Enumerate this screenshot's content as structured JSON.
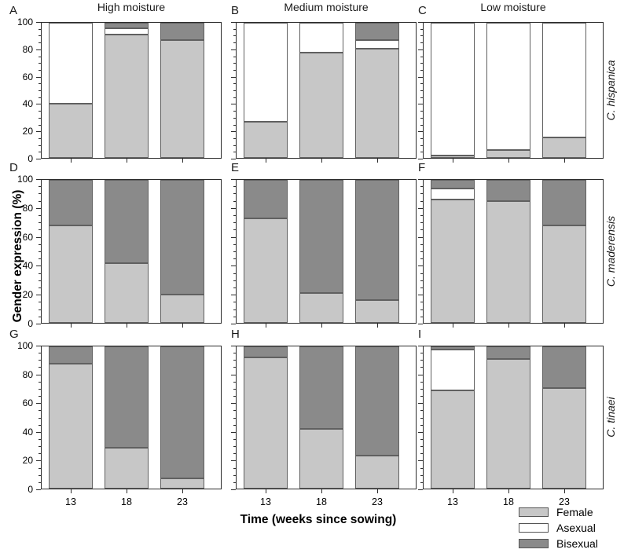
{
  "figure": {
    "y_axis_title": "Gender expression (%)",
    "x_axis_title": "Time (weeks since sowing)"
  },
  "columns": [
    {
      "title": "High moisture"
    },
    {
      "title": "Medium moisture"
    },
    {
      "title": "Low moisture"
    }
  ],
  "rows": [
    {
      "species": "C. hispanica"
    },
    {
      "species": "C. maderensis"
    },
    {
      "species": "C. tinaei"
    }
  ],
  "legend": [
    {
      "label": "Female",
      "color": "#c7c7c7"
    },
    {
      "label": "Asexual",
      "color": "#ffffff"
    },
    {
      "label": "Bisexual",
      "color": "#8a8a8a"
    }
  ],
  "chart_data": {
    "type": "bar",
    "stacked": true,
    "x": [
      "13",
      "18",
      "23"
    ],
    "xlabel": "Time (weeks since sowing)",
    "ylabel": "Gender expression (%)",
    "ylim": [
      0,
      100
    ],
    "y_ticks": [
      0,
      20,
      40,
      60,
      80,
      100
    ],
    "y_minor_tick_step": 5,
    "grid": false,
    "legend_position": "bottom-right",
    "stack_order_bottom_to_top": [
      "Female",
      "Asexual",
      "Bisexual"
    ],
    "colors": {
      "Female": "#c7c7c7",
      "Asexual": "#ffffff",
      "Bisexual": "#8a8a8a"
    },
    "panels": [
      {
        "letter": "A",
        "moisture": "High moisture",
        "species": "C. hispanica",
        "series": {
          "Female": [
            40,
            91,
            87
          ],
          "Asexual": [
            60,
            5,
            0
          ],
          "Bisexual": [
            0,
            4,
            13
          ]
        }
      },
      {
        "letter": "B",
        "moisture": "Medium moisture",
        "species": "C. hispanica",
        "series": {
          "Female": [
            27,
            78,
            81
          ],
          "Asexual": [
            73,
            22,
            6
          ],
          "Bisexual": [
            0,
            0,
            13
          ]
        }
      },
      {
        "letter": "C",
        "moisture": "Low moisture",
        "species": "C. hispanica",
        "series": {
          "Female": [
            2,
            6,
            15
          ],
          "Asexual": [
            98,
            94,
            85
          ],
          "Bisexual": [
            0,
            0,
            0
          ]
        }
      },
      {
        "letter": "D",
        "moisture": "High moisture",
        "species": "C. maderensis",
        "series": {
          "Female": [
            68,
            42,
            20
          ],
          "Asexual": [
            0,
            0,
            0
          ],
          "Bisexual": [
            32,
            58,
            80
          ]
        }
      },
      {
        "letter": "E",
        "moisture": "Medium moisture",
        "species": "C. maderensis",
        "series": {
          "Female": [
            73,
            21,
            16
          ],
          "Asexual": [
            0,
            0,
            0
          ],
          "Bisexual": [
            27,
            79,
            84
          ]
        }
      },
      {
        "letter": "F",
        "moisture": "Low moisture",
        "species": "C. maderensis",
        "series": {
          "Female": [
            86,
            85,
            68
          ],
          "Asexual": [
            8,
            0,
            0
          ],
          "Bisexual": [
            6,
            15,
            32
          ]
        }
      },
      {
        "letter": "G",
        "moisture": "High moisture",
        "species": "C. tinaei",
        "series": {
          "Female": [
            88,
            29,
            7
          ],
          "Asexual": [
            0,
            0,
            0
          ],
          "Bisexual": [
            12,
            71,
            93
          ]
        }
      },
      {
        "letter": "H",
        "moisture": "Medium moisture",
        "species": "C. tinaei",
        "series": {
          "Female": [
            92,
            42,
            23
          ],
          "Asexual": [
            0,
            0,
            0
          ],
          "Bisexual": [
            8,
            58,
            77
          ]
        }
      },
      {
        "letter": "I",
        "moisture": "Low moisture",
        "species": "C. tinaei",
        "series": {
          "Female": [
            69,
            91,
            71
          ],
          "Asexual": [
            29,
            0,
            0
          ],
          "Bisexual": [
            2,
            9,
            29
          ]
        }
      }
    ]
  }
}
